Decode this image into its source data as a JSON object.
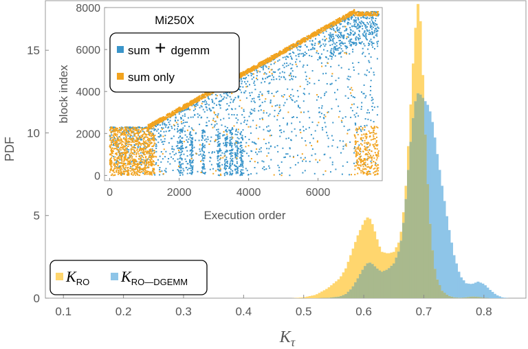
{
  "colors": {
    "series_a": "#FFD66E",
    "series_b": "#8EC5E8",
    "overlap": "#A9B98D",
    "inset_blue": "#3A95CA",
    "inset_orange": "#F2A31E",
    "axis": "#888888",
    "text": "#555555"
  },
  "chart_data": [
    {
      "type": "area",
      "xlabel_symbol": "K",
      "xlabel_subscript": "τ",
      "ylabel": "PDF",
      "xlim": [
        0.07,
        0.87
      ],
      "ylim": [
        0,
        18
      ],
      "xticks": [
        "0.1",
        "0.2",
        "0.3",
        "0.4",
        "0.5",
        "0.6",
        "0.7",
        "0.8"
      ],
      "yticks": [
        "0",
        "5",
        "10",
        "15"
      ],
      "grid": false,
      "legend_placement": "bottom-left",
      "legend": [
        {
          "symbol": "K",
          "subscript": "RO"
        },
        {
          "symbol": "K",
          "subscript": "RO—DGEMM"
        }
      ],
      "x": [
        0.48,
        0.5,
        0.52,
        0.54,
        0.56,
        0.57,
        0.58,
        0.59,
        0.6,
        0.605,
        0.61,
        0.615,
        0.62,
        0.625,
        0.63,
        0.64,
        0.65,
        0.66,
        0.665,
        0.67,
        0.675,
        0.68,
        0.685,
        0.69,
        0.695,
        0.7,
        0.705,
        0.71,
        0.715,
        0.72,
        0.73,
        0.74,
        0.75,
        0.76,
        0.77,
        0.78,
        0.79,
        0.8,
        0.81,
        0.82,
        0.83,
        0.84
      ],
      "series": [
        {
          "values": [
            0,
            0.05,
            0.2,
            0.6,
            1.2,
            1.8,
            2.8,
            3.8,
            4.6,
            4.9,
            4.8,
            4.4,
            3.8,
            3.2,
            2.8,
            2.7,
            2.8,
            3.5,
            4.8,
            6.8,
            9.8,
            13.0,
            16.0,
            17.8,
            16.5,
            11.5,
            7.5,
            4.5,
            2.5,
            1.3,
            0.45,
            0.15,
            0.05,
            0.02,
            0.05,
            0.1,
            0.08,
            0.03,
            0,
            0,
            0,
            0
          ]
        },
        {
          "values": [
            0,
            0,
            0,
            0.02,
            0.1,
            0.25,
            0.6,
            1.2,
            1.85,
            2.1,
            2.15,
            2.05,
            1.85,
            1.7,
            1.6,
            1.75,
            2.1,
            3.0,
            4.2,
            6.0,
            8.2,
            10.3,
            11.8,
            12.4,
            12.3,
            12.0,
            11.8,
            11.3,
            10.5,
            9.2,
            6.8,
            4.5,
            2.6,
            1.35,
            0.9,
            0.85,
            1.0,
            0.85,
            0.5,
            0.2,
            0.05,
            0
          ]
        }
      ]
    },
    {
      "type": "scatter",
      "title": "Mi250X",
      "xlabel": "Execution order",
      "ylabel": "block index",
      "xlim": [
        -150,
        7850
      ],
      "ylim": [
        -250,
        8000
      ],
      "xticks": [
        "0",
        "2000",
        "4000",
        "6000"
      ],
      "yticks": [
        "0",
        "2000",
        "4000",
        "6000",
        "8000"
      ],
      "legend_placement": "top-left",
      "legend": [
        {
          "label_a": "sum",
          "plus": "+",
          "label_b": "dgemm"
        },
        {
          "label_a": "sum only"
        }
      ],
      "diagonal": {
        "from": [
          1100,
          2300
        ],
        "to": [
          7050,
          7800
        ]
      },
      "blocks": [
        {
          "series": "sum only",
          "x_range": [
            0,
            1300
          ],
          "y_range": [
            0,
            2300
          ]
        },
        {
          "series": "sum + dgemm",
          "x_range": [
            0,
            7800
          ],
          "y_range": [
            0,
            7800
          ]
        },
        {
          "series": "sum only",
          "x_range": [
            7050,
            7800
          ],
          "y_range": [
            0,
            2400
          ]
        }
      ]
    }
  ]
}
